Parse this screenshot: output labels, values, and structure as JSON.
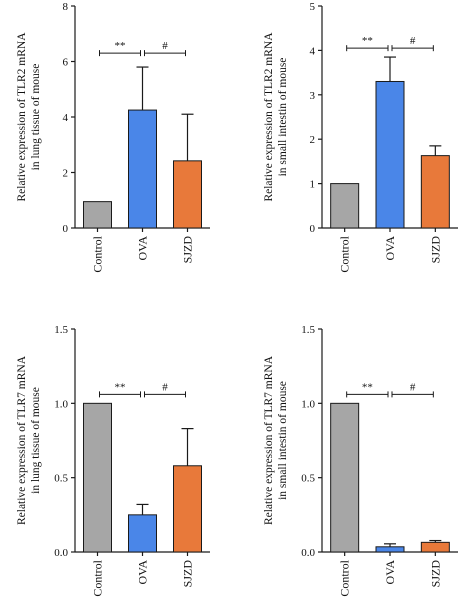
{
  "colors": {
    "control": "#a6a6a6",
    "ova": "#4a86e8",
    "sjzd": "#e8793a",
    "axis": "#1a1a1a"
  },
  "chart_data": [
    {
      "type": "bar",
      "categories": [
        "Control",
        "OVA",
        "SJZD"
      ],
      "values": [
        0.95,
        4.25,
        2.42
      ],
      "errors": [
        0,
        1.55,
        1.68
      ],
      "ylabel_lines": [
        "Relative expression of TLR2 mRNA",
        "in lung tissue of mouse"
      ],
      "ylim": [
        0,
        8
      ],
      "yticks": [
        "0",
        "2",
        "4",
        "6",
        "8"
      ],
      "significance": [
        {
          "from": 0,
          "to": 1,
          "label": "**",
          "y": 6.3
        },
        {
          "from": 1,
          "to": 2,
          "label": "#",
          "y": 6.3
        }
      ]
    },
    {
      "type": "bar",
      "categories": [
        "Control",
        "OVA",
        "SJZD"
      ],
      "values": [
        1.0,
        3.3,
        1.63
      ],
      "errors": [
        0,
        0.55,
        0.22
      ],
      "ylabel_lines": [
        "Relative expression of TLR2 mRNA",
        "in small intestin of mouse"
      ],
      "ylim": [
        0,
        5
      ],
      "yticks": [
        "0",
        "1",
        "2",
        "3",
        "4",
        "5"
      ],
      "significance": [
        {
          "from": 0,
          "to": 1,
          "label": "**",
          "y": 4.05
        },
        {
          "from": 1,
          "to": 2,
          "label": "#",
          "y": 4.05
        }
      ]
    },
    {
      "type": "bar",
      "categories": [
        "Control",
        "OVA",
        "SJZD"
      ],
      "values": [
        1.0,
        0.25,
        0.58
      ],
      "errors": [
        0,
        0.07,
        0.25
      ],
      "ylabel_lines": [
        "Relative expression of TLR7 mRNA",
        "in lung tissue of mouse"
      ],
      "ylim": [
        0,
        1.5
      ],
      "yticks": [
        "0.0",
        "0.5",
        "1.0",
        "1.5"
      ],
      "significance": [
        {
          "from": 0,
          "to": 1,
          "label": "**",
          "y": 1.06
        },
        {
          "from": 1,
          "to": 2,
          "label": "#",
          "y": 1.06
        }
      ]
    },
    {
      "type": "bar",
      "categories": [
        "Control",
        "OVA",
        "SJZD"
      ],
      "values": [
        1.0,
        0.035,
        0.065
      ],
      "errors": [
        0,
        0.02,
        0.012
      ],
      "ylabel_lines": [
        "Relative expression of TLR7 mRNA",
        "in small intestin of mouse"
      ],
      "ylim": [
        0,
        1.5
      ],
      "yticks": [
        "0.0",
        "0.5",
        "1.0",
        "1.5"
      ],
      "significance": [
        {
          "from": 0,
          "to": 1,
          "label": "**",
          "y": 1.06
        },
        {
          "from": 1,
          "to": 2,
          "label": "#",
          "y": 1.06
        }
      ]
    }
  ]
}
